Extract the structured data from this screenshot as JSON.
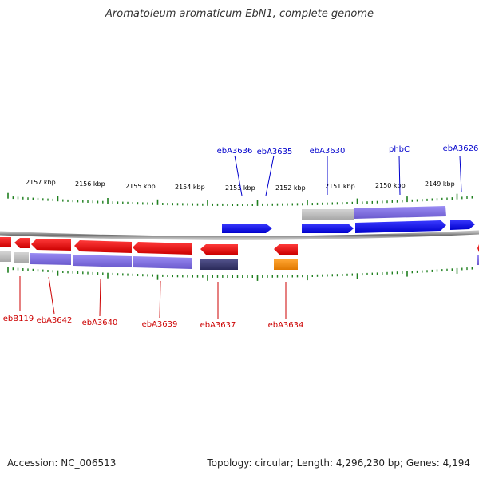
{
  "title": "Aromatoleum aromaticum EbN1, complete genome",
  "footer": {
    "accession": "Accession: NC_006513",
    "topology": "Topology: circular; Length: 4,296,230 bp; Genes: 4,194"
  },
  "colors": {
    "background": "#ffffff",
    "backbone": "#8a8a8a",
    "tick": "#1e7f1e",
    "forward_label": "#0000cc",
    "reverse_label": "#cc0000",
    "forward_gene": "#0000ff",
    "reverse_gene": "#ff0000",
    "cog_purple": "#7b68ee",
    "cog_gray": "#b8b8b8",
    "cog_dark": "#3c3c78",
    "cog_orange": "#ff8c00"
  },
  "scale": {
    "unit": "kbp",
    "labels": [
      "2157 kbp",
      "2156 kbp",
      "2155 kbp",
      "2154 kbp",
      "2153 kbp",
      "2152 kbp",
      "2151 kbp",
      "2150 kbp",
      "2149 kbp"
    ]
  },
  "forward_genes": [
    {
      "label": "ebA3636"
    },
    {
      "label": "ebA3635"
    },
    {
      "label": "ebA3630"
    },
    {
      "label": "phbC"
    },
    {
      "label": "ebA3626"
    }
  ],
  "reverse_genes": [
    {
      "label": "ebB119"
    },
    {
      "label": "ebA3642"
    },
    {
      "label": "ebA3640"
    },
    {
      "label": "ebA3639"
    },
    {
      "label": "ebA3637"
    },
    {
      "label": "ebA3634"
    }
  ]
}
